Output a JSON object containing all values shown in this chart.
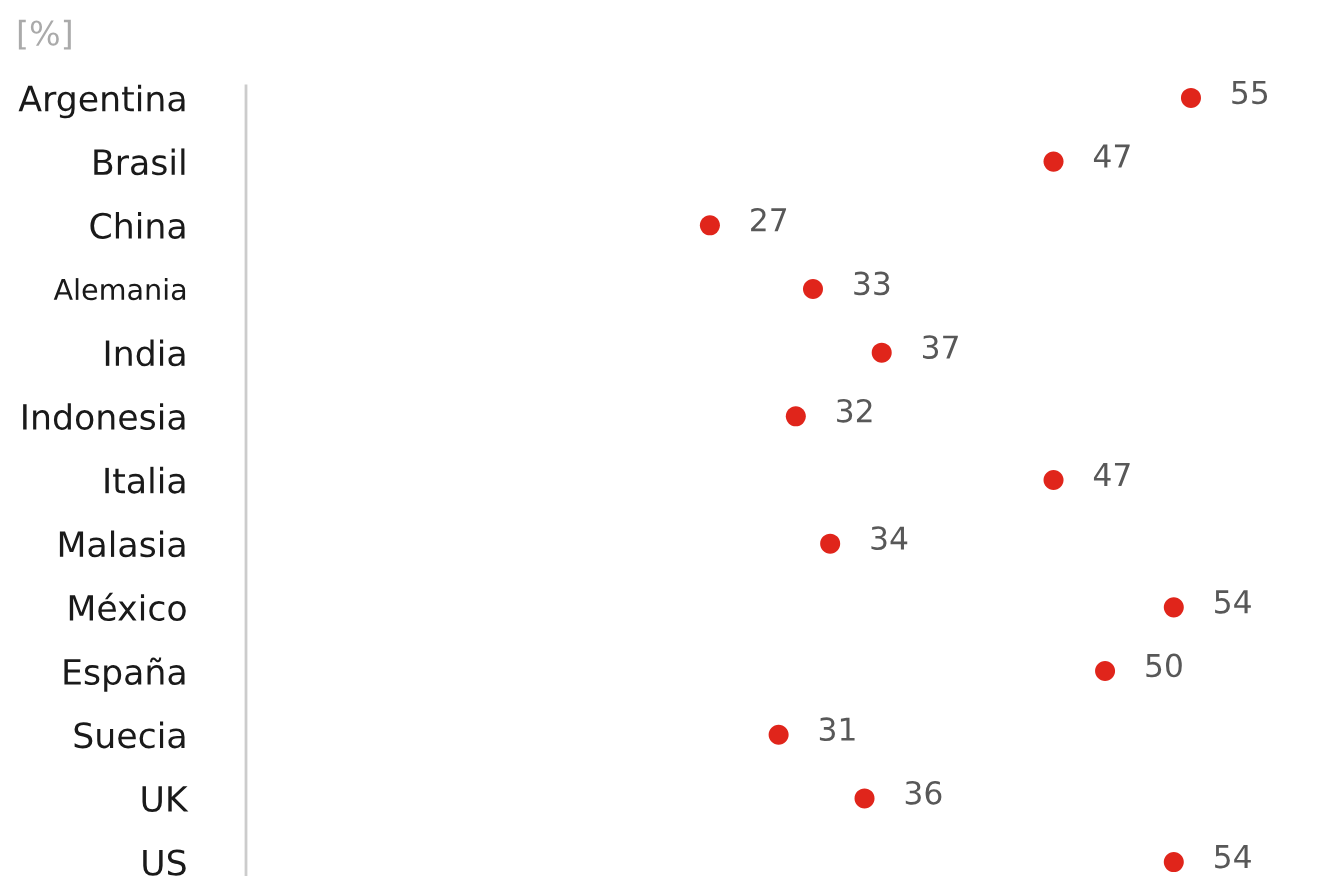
{
  "chart_data": {
    "type": "scatter",
    "title": "[%]",
    "orientation": "horizontal",
    "categories": [
      "Argentina",
      "Brasil",
      "China",
      "Alemania",
      "India",
      "Indonesia",
      "Italia",
      "Malasia",
      "México",
      "España",
      "Suecia",
      "UK",
      "US"
    ],
    "values": [
      55,
      47,
      27,
      33,
      37,
      32,
      47,
      34,
      54,
      50,
      31,
      36,
      54
    ],
    "color": "#e0251b",
    "marker": "circle",
    "data_labels": true,
    "tick_labels": "y"
  }
}
